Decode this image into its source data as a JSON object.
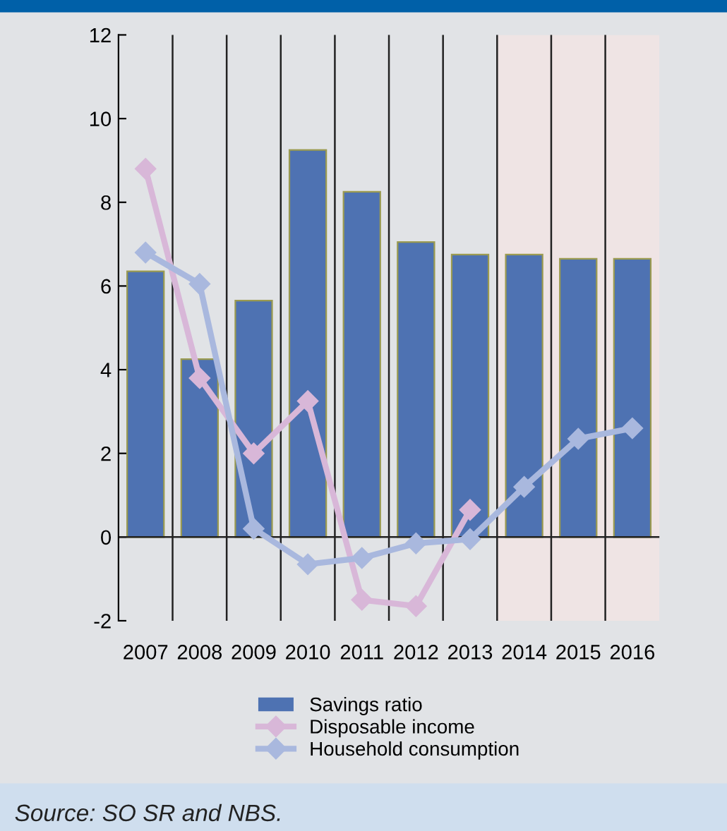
{
  "chart_data": {
    "type": "bar",
    "categories": [
      "2007",
      "2008",
      "2009",
      "2010",
      "2011",
      "2012",
      "2013",
      "2014",
      "2015",
      "2016"
    ],
    "series": [
      {
        "name": "Savings ratio",
        "color": "#4e72b2",
        "values": [
          6.35,
          4.25,
          5.65,
          9.25,
          8.25,
          7.05,
          6.75,
          6.75,
          6.65,
          6.65
        ]
      },
      {
        "name": "Disposable income",
        "type": "line",
        "color": "#d8b7d8",
        "values": [
          8.8,
          3.8,
          2.0,
          3.25,
          -1.5,
          -1.65,
          0.65,
          null,
          null,
          null
        ]
      },
      {
        "name": "Household consumption",
        "type": "line",
        "color": "#a9b8de",
        "values": [
          6.8,
          6.05,
          0.2,
          -0.65,
          -0.5,
          -0.15,
          -0.05,
          1.2,
          2.35,
          2.6
        ]
      }
    ],
    "ylim": [
      -2,
      12
    ],
    "yticks": [
      -2,
      0,
      2,
      4,
      6,
      8,
      10,
      12
    ],
    "bands": [
      {
        "axis": "x",
        "from": "2014",
        "to": "2016",
        "color": "#efe4e4"
      }
    ],
    "ref_lines": [
      {
        "axis": "y",
        "value": 0,
        "color": "#222222"
      }
    ],
    "grid": "x",
    "marker": "diamond",
    "legend": "bottom",
    "annotations": [
      "Source: SO SR and NBS."
    ]
  }
}
